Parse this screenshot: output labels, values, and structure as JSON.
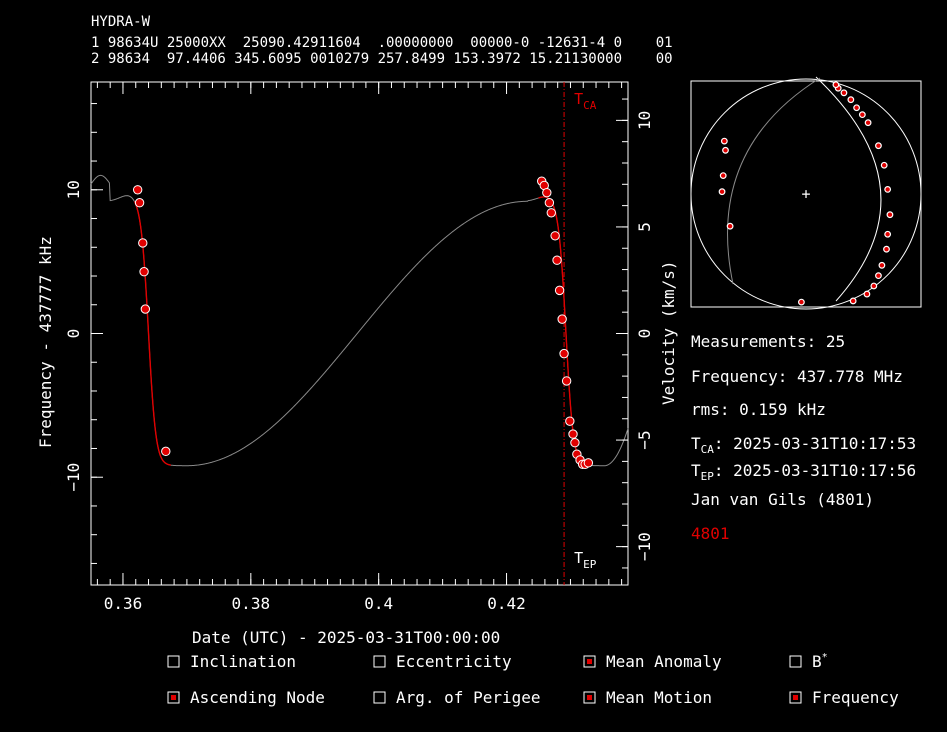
{
  "header": {
    "name": "HYDRA-W",
    "line1": "1 98634U 25000XX  25090.42911604  .00000000  00000-0 -12631-4 0    01",
    "line2": "2 98634  97.4406 345.6095 0010279 257.8499 153.3972 15.21130000    00"
  },
  "chart_data": {
    "type": "scatter",
    "xlabel": "Date (UTC) - 2025-03-31T00:00:00",
    "ylabel": "Frequency - 437777 kHz",
    "y2label": "Velocity (km/s)",
    "xlim": [
      0.355,
      0.439
    ],
    "ylim": [
      -17.5,
      17.5
    ],
    "y2lim": [
      -11.8,
      11.8
    ],
    "xticks": [
      "0.36",
      "0.38",
      "0.4",
      "0.42"
    ],
    "yticks": [
      "10",
      "0",
      "−10"
    ],
    "y2ticks": [
      "10",
      "5",
      "0",
      "−5",
      "−10"
    ],
    "tca": {
      "x": 0.429,
      "label_main": "T",
      "label_sub": "CA"
    },
    "tep": {
      "label_main": "T",
      "label_sub": "EP"
    },
    "series": [
      {
        "kind": "points",
        "color": "#e00000",
        "x": [
          0.3623,
          0.3626,
          0.3631,
          0.3633,
          0.3635,
          0.3667,
          0.4255,
          0.4259,
          0.4263,
          0.4267,
          0.427,
          0.4276,
          0.4279,
          0.4283,
          0.4287,
          0.429,
          0.4294,
          0.4299,
          0.4304,
          0.4307,
          0.431,
          0.4315,
          0.4319,
          0.4323,
          0.4328
        ],
        "y": [
          10.0,
          9.1,
          6.3,
          4.3,
          1.7,
          -8.2,
          10.6,
          10.3,
          9.8,
          9.1,
          8.4,
          6.8,
          5.1,
          3.0,
          1.0,
          -1.4,
          -3.3,
          -6.1,
          -7.0,
          -7.6,
          -8.4,
          -8.8,
          -9.1,
          -9.1,
          -9.0
        ]
      }
    ]
  },
  "mini_map": {
    "center_marker": "+",
    "points": [
      [
        0.41,
        -0.93
      ],
      [
        0.53,
        -0.87
      ],
      [
        0.59,
        -0.8
      ],
      [
        0.63,
        -0.71
      ],
      [
        0.66,
        -0.62
      ],
      [
        0.7,
        -0.48
      ],
      [
        0.71,
        -0.35
      ],
      [
        0.73,
        -0.18
      ],
      [
        0.71,
        0.04
      ],
      [
        0.68,
        0.25
      ],
      [
        0.63,
        0.42
      ],
      [
        0.54,
        0.62
      ],
      [
        0.49,
        0.69
      ],
      [
        0.44,
        0.75
      ],
      [
        0.39,
        0.82
      ],
      [
        0.33,
        0.88
      ],
      [
        0.28,
        0.92
      ],
      [
        0.26,
        0.95
      ],
      [
        -0.04,
        -0.94
      ],
      [
        -0.66,
        -0.28
      ],
      [
        -0.73,
        0.02
      ],
      [
        -0.72,
        0.16
      ],
      [
        -0.7,
        0.38
      ],
      [
        -0.71,
        0.46
      ]
    ]
  },
  "info": {
    "measurements": "Measurements: 25",
    "frequency": "Frequency: 437.778 MHz",
    "rms": "rms: 0.159 kHz",
    "tca_main": "T",
    "tca_sub": "CA",
    "tca_value": ": 2025-03-31T10:17:53",
    "tep_main": "T",
    "tep_sub": "EP",
    "tep_value": ": 2025-03-31T10:17:56",
    "observer": "Jan van Gils (4801)",
    "site_id": "4801"
  },
  "checkboxes": [
    {
      "label": "Inclination",
      "checked": false
    },
    {
      "label": "Eccentricity",
      "checked": false
    },
    {
      "label": "Mean Anomaly",
      "checked": true
    },
    {
      "label": "B",
      "sup": "*",
      "checked": false
    },
    {
      "label": "Ascending Node",
      "checked": true
    },
    {
      "label": "Arg. of Perigee",
      "checked": false
    },
    {
      "label": "Mean Motion",
      "checked": true
    },
    {
      "label": "Frequency",
      "checked": true
    }
  ]
}
